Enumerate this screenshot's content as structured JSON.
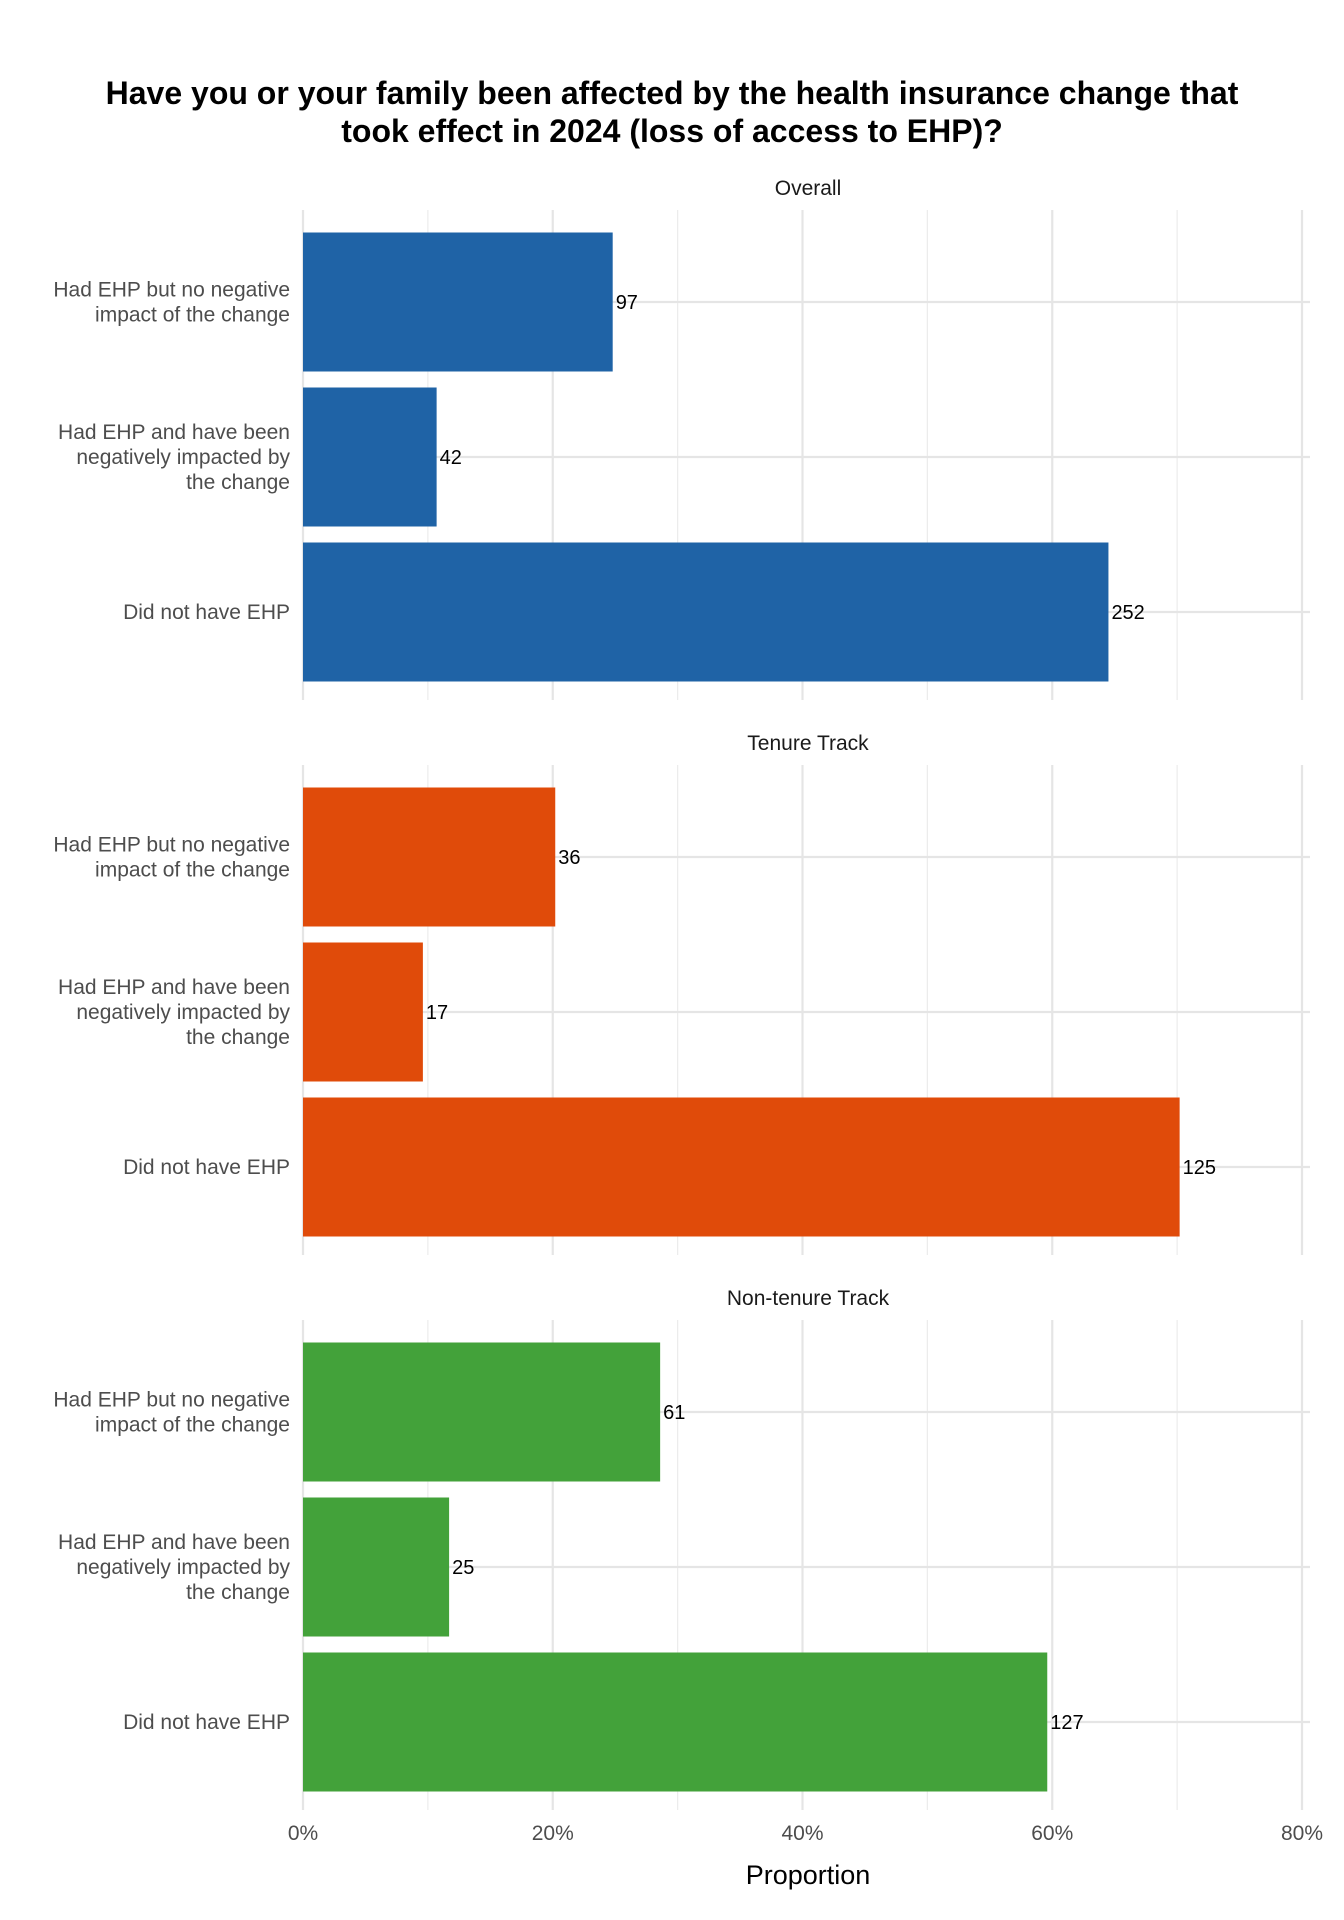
{
  "chart_data": {
    "type": "bar",
    "orientation": "horizontal",
    "title_lines": [
      "Have you or your family been affected by the health insurance change that",
      "took effect in 2024 (loss of access to EHP)?"
    ],
    "xlabel": "Proportion",
    "ylabel": "",
    "xlim": [
      0,
      0.8
    ],
    "x_ticks": [
      0,
      0.2,
      0.4,
      0.6,
      0.8
    ],
    "x_tick_labels": [
      "0%",
      "20%",
      "40%",
      "60%",
      "80%"
    ],
    "grid": true,
    "legend": "none",
    "categories": [
      [
        "Had EHP but no negative",
        "impact of the change"
      ],
      [
        "Had EHP and have been",
        "negatively impacted by",
        "the change"
      ],
      [
        "Did not have EHP"
      ]
    ],
    "facets": [
      {
        "title": "Overall",
        "color": "#1f63a6",
        "counts": [
          97,
          42,
          252
        ],
        "proportions": [
          0.248,
          0.107,
          0.645
        ]
      },
      {
        "title": "Tenure Track",
        "color": "#e04b0a",
        "counts": [
          36,
          17,
          125
        ],
        "proportions": [
          0.202,
          0.096,
          0.702
        ]
      },
      {
        "title": "Non-tenure Track",
        "color": "#43a23a",
        "counts": [
          61,
          25,
          127
        ],
        "proportions": [
          0.286,
          0.117,
          0.596
        ]
      }
    ]
  }
}
